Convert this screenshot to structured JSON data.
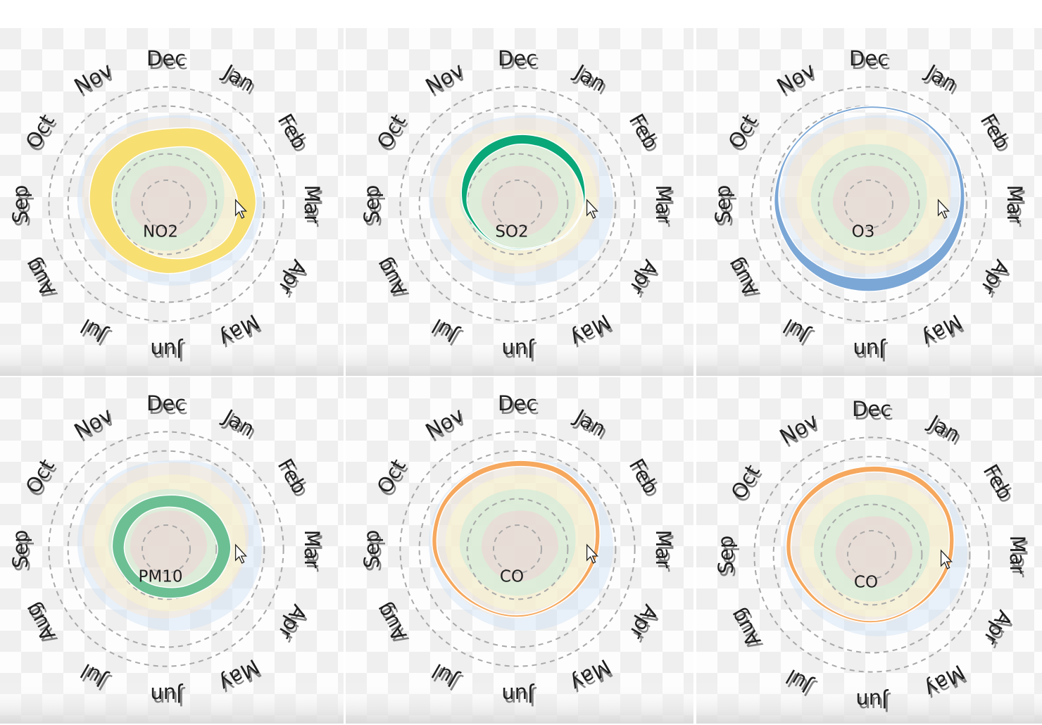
{
  "months": [
    "Dec",
    "Jan",
    "Feb",
    "Mar",
    "Apr",
    "May",
    "Jun",
    "Jul",
    "Aug",
    "Sep",
    "Oct",
    "Nov"
  ],
  "colors": {
    "NO2": "#f7df72",
    "SO2": "#0aa878",
    "O3": "#7ba7d6",
    "PM10": "#6cbf93",
    "CO": "#f6a85e",
    "background_layers": [
      "#cfe0f3",
      "#fde7cf",
      "#fbf5cc",
      "#bfe8dc",
      "#f6cdd4"
    ]
  },
  "chart_data": [
    {
      "type": "radial-area",
      "center_label": "NO2",
      "highlight": "NO2",
      "months": [
        "Dec",
        "Jan",
        "Feb",
        "Mar",
        "Apr",
        "May",
        "Jun",
        "Jul",
        "Aug",
        "Sep",
        "Oct",
        "Nov"
      ],
      "band_inner": [
        0.47,
        0.53,
        0.56,
        0.6,
        0.58,
        0.5,
        0.45,
        0.43,
        0.43,
        0.45,
        0.47,
        0.47
      ],
      "band_outer": [
        0.63,
        0.7,
        0.73,
        0.75,
        0.69,
        0.6,
        0.58,
        0.57,
        0.59,
        0.64,
        0.66,
        0.64
      ]
    },
    {
      "type": "radial-area",
      "center_label": "SO2",
      "highlight": "SO2",
      "months": [
        "Dec",
        "Jan",
        "Feb",
        "Mar",
        "Apr",
        "May",
        "Jun",
        "Jul",
        "Aug",
        "Sep",
        "Oct",
        "Nov"
      ],
      "band_inner": [
        0.5,
        0.52,
        0.54,
        0.55,
        0.48,
        0.4,
        0.37,
        0.37,
        0.38,
        0.42,
        0.44,
        0.47
      ],
      "band_outer": [
        0.58,
        0.6,
        0.6,
        0.56,
        0.49,
        0.41,
        0.38,
        0.38,
        0.4,
        0.46,
        0.51,
        0.55
      ]
    },
    {
      "type": "radial-area",
      "center_label": "O3",
      "highlight": "O3",
      "months": [
        "Dec",
        "Jan",
        "Feb",
        "Mar",
        "Apr",
        "May",
        "Jun",
        "Jul",
        "Aug",
        "Sep",
        "Oct",
        "Nov"
      ],
      "band_inner": [
        0.8,
        0.82,
        0.8,
        0.76,
        0.7,
        0.64,
        0.62,
        0.65,
        0.7,
        0.75,
        0.78,
        0.79
      ],
      "band_outer": [
        0.82,
        0.84,
        0.83,
        0.8,
        0.78,
        0.74,
        0.73,
        0.74,
        0.76,
        0.79,
        0.8,
        0.81
      ]
    },
    {
      "type": "radial-area",
      "center_label": "PM10",
      "highlight": "PM10",
      "months": [
        "Dec",
        "Jan",
        "Feb",
        "Mar",
        "Apr",
        "May",
        "Jun",
        "Jul",
        "Aug",
        "Sep",
        "Oct",
        "Nov"
      ],
      "band_inner": [
        0.35,
        0.37,
        0.4,
        0.43,
        0.4,
        0.35,
        0.32,
        0.32,
        0.33,
        0.35,
        0.35,
        0.35
      ],
      "band_outer": [
        0.45,
        0.48,
        0.52,
        0.54,
        0.5,
        0.44,
        0.41,
        0.41,
        0.42,
        0.45,
        0.46,
        0.45
      ]
    },
    {
      "type": "radial-area",
      "center_label": "CO",
      "highlight": "CO",
      "months": [
        "Dec",
        "Jan",
        "Feb",
        "Mar",
        "Apr",
        "May",
        "Jun",
        "Jul",
        "Aug",
        "Sep",
        "Oct",
        "Nov"
      ],
      "band_inner": [
        0.69,
        0.71,
        0.7,
        0.64,
        0.58,
        0.55,
        0.55,
        0.56,
        0.6,
        0.67,
        0.7,
        0.69
      ],
      "band_outer": [
        0.74,
        0.76,
        0.74,
        0.68,
        0.61,
        0.57,
        0.57,
        0.58,
        0.63,
        0.71,
        0.74,
        0.74
      ]
    },
    {
      "type": "radial-area",
      "center_label": "CO",
      "highlight": "CO",
      "months": [
        "Dec",
        "Jan",
        "Feb",
        "Mar",
        "Apr",
        "May",
        "Jun",
        "Jul",
        "Aug",
        "Sep",
        "Oct",
        "Nov"
      ],
      "band_inner": [
        0.69,
        0.71,
        0.7,
        0.64,
        0.58,
        0.55,
        0.55,
        0.56,
        0.6,
        0.67,
        0.7,
        0.69
      ],
      "band_outer": [
        0.74,
        0.76,
        0.74,
        0.68,
        0.61,
        0.57,
        0.57,
        0.58,
        0.63,
        0.71,
        0.74,
        0.74
      ]
    }
  ]
}
